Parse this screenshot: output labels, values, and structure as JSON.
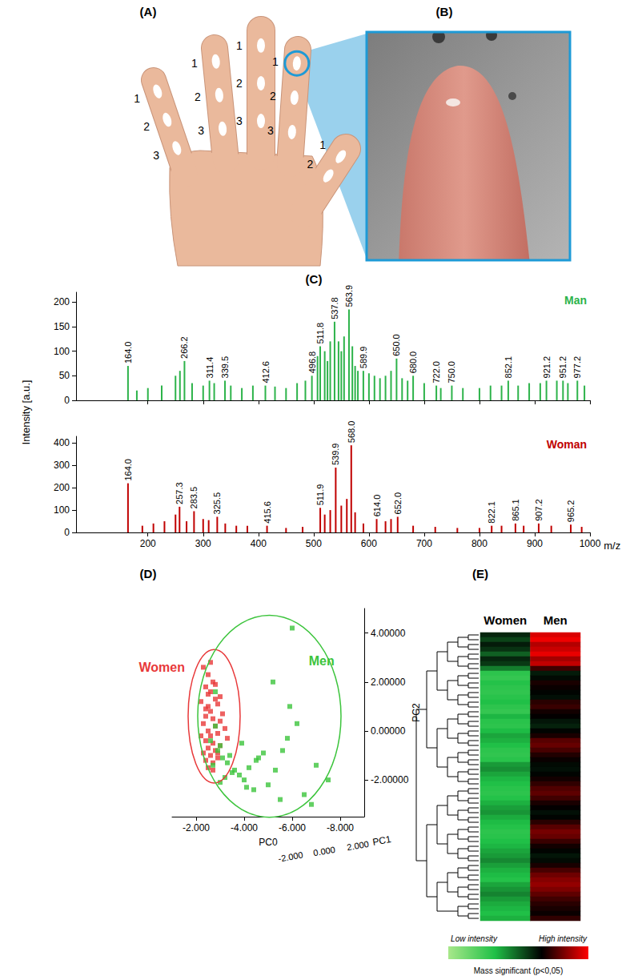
{
  "panel_labels": [
    "(A)",
    "(B)",
    "(C)",
    "(D)",
    "(E)"
  ],
  "hand": {
    "fingers": [
      {
        "labels": [
          "1",
          "2",
          "3"
        ]
      },
      {
        "labels": [
          "1",
          "2",
          "3"
        ]
      },
      {
        "labels": [
          "1",
          "2",
          "3"
        ]
      },
      {
        "labels": [
          "1",
          "2",
          "3"
        ]
      },
      {
        "labels": [
          "1",
          "2"
        ]
      }
    ]
  },
  "chart_data": [
    {
      "type": "bar",
      "y_label": "Intensity [a.u.]",
      "xlim": [
        70,
        1000
      ],
      "xticks": [
        200,
        300,
        400,
        500,
        600,
        700,
        800,
        900,
        1000
      ],
      "ylim": [
        0,
        220
      ],
      "yticks": [
        0,
        50,
        100,
        150,
        200
      ],
      "tick_labels": "y",
      "series": [
        {
          "name": "Man",
          "color": "#2db34a",
          "x": [
            164.0,
            180,
            200,
            225,
            250,
            258,
            266.2,
            280,
            300,
            311.4,
            320,
            339.5,
            350,
            370,
            390,
            412.6,
            430,
            450,
            470,
            485,
            496.8,
            507,
            511.8,
            520,
            525,
            530,
            537.8,
            545,
            550,
            555,
            563.9,
            570,
            575,
            580,
            589.9,
            600,
            610,
            620,
            630,
            640,
            650.0,
            660,
            670,
            680.0,
            700,
            722.0,
            730,
            750.0,
            770,
            800,
            820,
            840,
            852.1,
            870,
            890,
            910,
            921.2,
            940,
            951.2,
            960,
            977.2,
            990
          ],
          "values": [
            70,
            20,
            25,
            30,
            50,
            60,
            80,
            35,
            30,
            40,
            35,
            40,
            30,
            25,
            30,
            30,
            28,
            25,
            35,
            40,
            50,
            90,
            110,
            100,
            80,
            120,
            160,
            120,
            100,
            130,
            185,
            110,
            70,
            60,
            60,
            55,
            50,
            45,
            50,
            60,
            85,
            45,
            40,
            50,
            35,
            30,
            25,
            30,
            25,
            25,
            30,
            30,
            40,
            30,
            35,
            35,
            40,
            40,
            40,
            35,
            40,
            30
          ],
          "labels": [
            "164.0",
            null,
            null,
            null,
            null,
            null,
            "266.2",
            null,
            null,
            "311.4",
            null,
            "339.5",
            null,
            null,
            null,
            "412.6",
            null,
            null,
            null,
            null,
            "496.8",
            null,
            "511.8",
            null,
            null,
            null,
            "537.8",
            null,
            null,
            null,
            "563.9",
            null,
            null,
            null,
            "589.9",
            null,
            null,
            null,
            null,
            null,
            "650.0",
            null,
            null,
            "680.0",
            null,
            "722.0",
            null,
            "750.0",
            null,
            null,
            null,
            null,
            "852.1",
            null,
            null,
            null,
            "921.2",
            null,
            "951.2",
            null,
            "977.2",
            null
          ]
        }
      ]
    },
    {
      "type": "bar",
      "x_label": "m/z",
      "xlim": [
        70,
        1000
      ],
      "xticks": [
        200,
        300,
        400,
        500,
        600,
        700,
        800,
        900,
        1000
      ],
      "ylim": [
        0,
        430
      ],
      "yticks": [
        0,
        100,
        200,
        300,
        400
      ],
      "series": [
        {
          "name": "Woman",
          "color": "#c00000",
          "x": [
            164.0,
            190,
            210,
            230,
            250,
            257.3,
            270,
            283.5,
            300,
            310,
            325.5,
            340,
            360,
            380,
            415.6,
            450,
            480,
            511.9,
            520,
            530,
            539.9,
            550,
            560,
            568.0,
            575,
            590,
            614.0,
            630,
            640,
            652.0,
            680,
            720,
            760,
            800,
            822.1,
            840,
            865.1,
            880,
            907.2,
            930,
            965.2,
            985
          ],
          "values": [
            220,
            30,
            40,
            50,
            80,
            115,
            50,
            95,
            60,
            55,
            70,
            40,
            30,
            30,
            30,
            20,
            25,
            110,
            80,
            100,
            290,
            120,
            150,
            390,
            90,
            40,
            60,
            50,
            60,
            70,
            30,
            25,
            20,
            20,
            30,
            30,
            40,
            30,
            40,
            30,
            35,
            25
          ],
          "labels": [
            "164.0",
            null,
            null,
            null,
            null,
            "257.3",
            null,
            "283.5",
            null,
            null,
            "325.5",
            null,
            null,
            null,
            "415.6",
            null,
            null,
            "511.9",
            null,
            null,
            "539.9",
            null,
            null,
            "568.0",
            null,
            null,
            "614.0",
            null,
            null,
            "652.0",
            null,
            null,
            null,
            null,
            "822.1",
            null,
            "865.1",
            null,
            "907.2",
            null,
            "965.2",
            null
          ]
        }
      ]
    },
    {
      "type": "scatter",
      "x_label": "PC0",
      "y_label": "PC2",
      "z_label": "PC1",
      "xlim": [
        -1,
        -9
      ],
      "xticks": [
        {
          "value": -2,
          "label": "-2.000"
        },
        {
          "value": -4,
          "label": "-4.000"
        },
        {
          "value": -6,
          "label": "-6.000"
        },
        {
          "value": -8,
          "label": "-8.000"
        }
      ],
      "ylim": [
        -3.5,
        5
      ],
      "yticks": [
        {
          "value": -2,
          "label": "-2.00000"
        },
        {
          "value": 0,
          "label": "0.00000"
        },
        {
          "value": 2,
          "label": "2.00000"
        },
        {
          "value": 4,
          "label": "4.00000"
        }
      ],
      "zticks": [
        {
          "value": -2,
          "label": "-2.000"
        },
        {
          "value": 0,
          "label": "0.000"
        },
        {
          "value": 2,
          "label": "2.000"
        }
      ],
      "marker": "square",
      "series": [
        {
          "name": "Women",
          "color": "#e8393a",
          "x": [
            -2.3,
            -2.5,
            -2.7,
            -2.4,
            -2.6,
            -2.8,
            -3.0,
            -2.2,
            -2.5,
            -2.9,
            -2.6,
            -2.4,
            -2.7,
            -3.1,
            -2.3,
            -2.8,
            -2.5,
            -2.6,
            -2.9,
            -3.2,
            -2.4,
            -2.7,
            -2.5,
            -2.3,
            -2.8,
            -3.0,
            -2.6,
            -2.4,
            -2.9,
            -2.7,
            -2.5,
            -3.3,
            -2.6,
            -2.8,
            -2.4,
            -2.2,
            -2.7,
            -3.0,
            -2.5,
            -2.9
          ],
          "values": [
            2.6,
            2.3,
            2.0,
            1.8,
            1.6,
            1.9,
            1.4,
            1.2,
            1.0,
            1.1,
            0.8,
            0.6,
            0.5,
            0.7,
            0.3,
            0.2,
            0.0,
            -0.2,
            -0.1,
            0.1,
            -0.4,
            -0.5,
            -0.7,
            -0.9,
            -0.8,
            -0.6,
            -1.0,
            -1.2,
            -1.1,
            -1.3,
            -1.5,
            -0.3,
            2.8,
            1.3,
            0.9,
            -0.2,
            -1.6,
            0.4,
            1.5,
            -0.9
          ]
        },
        {
          "name": "Men",
          "color": "#3cc43c",
          "x": [
            -2.6,
            -2.9,
            -3.1,
            -2.7,
            -3.0,
            -2.8,
            -3.3,
            -3.5,
            -3.2,
            -3.4,
            -3.6,
            -3.8,
            -4.0,
            -4.2,
            -4.5,
            -4.8,
            -5.0,
            -5.3,
            -5.6,
            -6.0,
            -4.4,
            -5.2,
            -6.5,
            -7.0,
            -5.8,
            -4.6,
            -6.2,
            -7.5,
            -5.5,
            -4.1,
            -6.8,
            -3.9,
            -2.8,
            -3.0,
            -5.9
          ],
          "values": [
            -0.4,
            -0.8,
            -1.1,
            -1.4,
            -0.6,
            1.6,
            -1.3,
            -1.7,
            -1.9,
            -1.0,
            -1.6,
            -1.8,
            -2.0,
            -1.5,
            -1.2,
            -0.9,
            -2.2,
            -1.6,
            -0.8,
            4.2,
            -2.4,
            2.0,
            -2.6,
            -1.4,
            -0.3,
            -1.1,
            0.3,
            -2.0,
            -2.8,
            -2.3,
            -3.0,
            -0.5,
            0.2,
            -2.1,
            1.0
          ]
        }
      ]
    },
    {
      "type": "heatmap",
      "categories": [
        "Women",
        "Men"
      ],
      "cells": [
        [
          0.6,
          0.55,
          0.62,
          0.58,
          0.5,
          0.6,
          0.57,
          0.45,
          0.3,
          0.28,
          0.32,
          0.3,
          0.29,
          0.31,
          0.33,
          0.3,
          0.28,
          0.35,
          0.31,
          0.3,
          0.34,
          0.38,
          0.36,
          0.33,
          0.3,
          0.29,
          0.31,
          0.4,
          0.42,
          0.38,
          0.35,
          0.33,
          0.31,
          0.3,
          0.32,
          0.36,
          0.39,
          0.41,
          0.37,
          0.34,
          0.32,
          0.3,
          0.31,
          0.33,
          0.35,
          0.38,
          0.4,
          0.43,
          0.39,
          0.36,
          0.34,
          0.32,
          0.38,
          0.41,
          0.44,
          0.4,
          0.37,
          0.35,
          0.33,
          0.36
        ],
        [
          0.95,
          0.98,
          0.9,
          0.93,
          0.97,
          0.88,
          0.92,
          0.75,
          0.62,
          0.65,
          0.7,
          0.68,
          0.66,
          0.64,
          0.72,
          0.74,
          0.69,
          0.67,
          0.63,
          0.61,
          0.66,
          0.7,
          0.78,
          0.8,
          0.76,
          0.71,
          0.68,
          0.65,
          0.64,
          0.66,
          0.69,
          0.73,
          0.77,
          0.79,
          0.75,
          0.7,
          0.67,
          0.64,
          0.66,
          0.72,
          0.78,
          0.82,
          0.8,
          0.74,
          0.69,
          0.66,
          0.63,
          0.65,
          0.7,
          0.76,
          0.81,
          0.84,
          0.86,
          0.83,
          0.79,
          0.75,
          0.72,
          0.7,
          0.68,
          0.73
        ]
      ],
      "value_range": [
        0,
        1
      ],
      "colorbar": {
        "low_label": "Low intensity",
        "high_label": "High intensity",
        "title": "Mass significant (p<0,05)"
      }
    }
  ]
}
